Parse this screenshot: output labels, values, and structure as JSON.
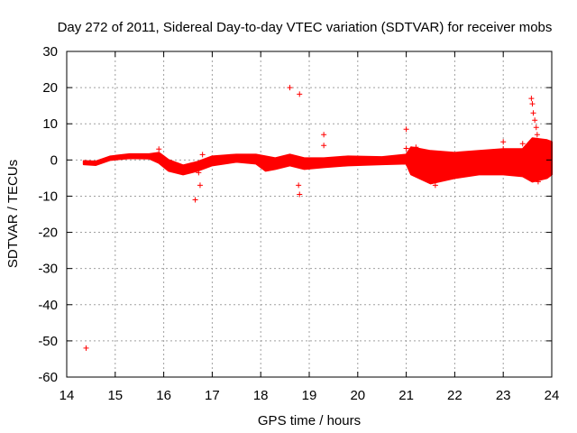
{
  "chart_data": {
    "type": "scatter",
    "title": "Day 272 of 2011, Sidereal Day-to-day VTEC variation (SDTVAR) for receiver mobs",
    "xlabel": "GPS time / hours",
    "ylabel": "SDTVAR / TECUs",
    "xlim": [
      14,
      24
    ],
    "ylim": [
      -60,
      30
    ],
    "x_ticks": [
      14,
      15,
      16,
      17,
      18,
      19,
      20,
      21,
      22,
      23,
      24
    ],
    "y_ticks": [
      -60,
      -50,
      -40,
      -30,
      -20,
      -10,
      0,
      10,
      20,
      30
    ],
    "x_tick_labels": [
      "14",
      "15",
      "16",
      "17",
      "18",
      "19",
      "20",
      "21",
      "22",
      "23",
      "24"
    ],
    "y_tick_labels": [
      "-60",
      "-50",
      "-40",
      "-30",
      "-20",
      "-10",
      "0",
      "10",
      "20",
      "30"
    ],
    "grid": true,
    "marker": "+",
    "color": "#ff0000",
    "band": [
      {
        "x": 14.35,
        "lo": -1.2,
        "hi": -0.3
      },
      {
        "x": 14.6,
        "lo": -1.4,
        "hi": -0.4
      },
      {
        "x": 14.9,
        "lo": 0.0,
        "hi": 1.0
      },
      {
        "x": 15.3,
        "lo": 0.5,
        "hi": 1.6
      },
      {
        "x": 15.7,
        "lo": 0.4,
        "hi": 1.6
      },
      {
        "x": 15.9,
        "lo": -0.8,
        "hi": 2.0
      },
      {
        "x": 16.1,
        "lo": -3.0,
        "hi": 0.0
      },
      {
        "x": 16.4,
        "lo": -4.0,
        "hi": -1.5
      },
      {
        "x": 16.7,
        "lo": -3.0,
        "hi": -0.5
      },
      {
        "x": 17.0,
        "lo": -1.5,
        "hi": 1.0
      },
      {
        "x": 17.5,
        "lo": -0.5,
        "hi": 1.5
      },
      {
        "x": 17.9,
        "lo": -1.0,
        "hi": 1.5
      },
      {
        "x": 18.1,
        "lo": -3.0,
        "hi": 1.0
      },
      {
        "x": 18.3,
        "lo": -2.5,
        "hi": 0.5
      },
      {
        "x": 18.6,
        "lo": -1.5,
        "hi": 1.5
      },
      {
        "x": 18.9,
        "lo": -2.5,
        "hi": 0.5
      },
      {
        "x": 19.3,
        "lo": -2.0,
        "hi": 0.5
      },
      {
        "x": 19.8,
        "lo": -1.5,
        "hi": 1.0
      },
      {
        "x": 20.5,
        "lo": -1.2,
        "hi": 0.8
      },
      {
        "x": 21.0,
        "lo": -1.0,
        "hi": 1.5
      },
      {
        "x": 21.1,
        "lo": -4.0,
        "hi": 3.5
      },
      {
        "x": 21.5,
        "lo": -6.5,
        "hi": 2.5
      },
      {
        "x": 22.0,
        "lo": -5.0,
        "hi": 2.0
      },
      {
        "x": 22.5,
        "lo": -4.0,
        "hi": 2.5
      },
      {
        "x": 23.0,
        "lo": -4.0,
        "hi": 3.0
      },
      {
        "x": 23.4,
        "lo": -4.5,
        "hi": 3.0
      },
      {
        "x": 23.6,
        "lo": -6.0,
        "hi": 6.0
      },
      {
        "x": 23.9,
        "lo": -5.0,
        "hi": 5.5
      },
      {
        "x": 24.0,
        "lo": -4.0,
        "hi": 5.0
      }
    ],
    "outliers": [
      {
        "x": 14.4,
        "y": -52
      },
      {
        "x": 15.9,
        "y": 3
      },
      {
        "x": 16.65,
        "y": -11
      },
      {
        "x": 16.72,
        "y": -3.5
      },
      {
        "x": 16.75,
        "y": -7
      },
      {
        "x": 16.8,
        "y": 1.5
      },
      {
        "x": 18.6,
        "y": 20
      },
      {
        "x": 18.8,
        "y": 18.2
      },
      {
        "x": 18.78,
        "y": -7
      },
      {
        "x": 18.8,
        "y": -9.5
      },
      {
        "x": 19.3,
        "y": 7
      },
      {
        "x": 19.3,
        "y": 4
      },
      {
        "x": 21.0,
        "y": 8.5
      },
      {
        "x": 21.0,
        "y": 3.2
      },
      {
        "x": 21.2,
        "y": 3.5
      },
      {
        "x": 21.6,
        "y": -7
      },
      {
        "x": 23.0,
        "y": 5
      },
      {
        "x": 23.0,
        "y": 3
      },
      {
        "x": 23.4,
        "y": 4.5
      },
      {
        "x": 23.58,
        "y": 17
      },
      {
        "x": 23.6,
        "y": 15.5
      },
      {
        "x": 23.62,
        "y": 13
      },
      {
        "x": 23.65,
        "y": 11
      },
      {
        "x": 23.68,
        "y": 9
      },
      {
        "x": 23.7,
        "y": 7
      },
      {
        "x": 23.72,
        "y": -6
      }
    ]
  }
}
